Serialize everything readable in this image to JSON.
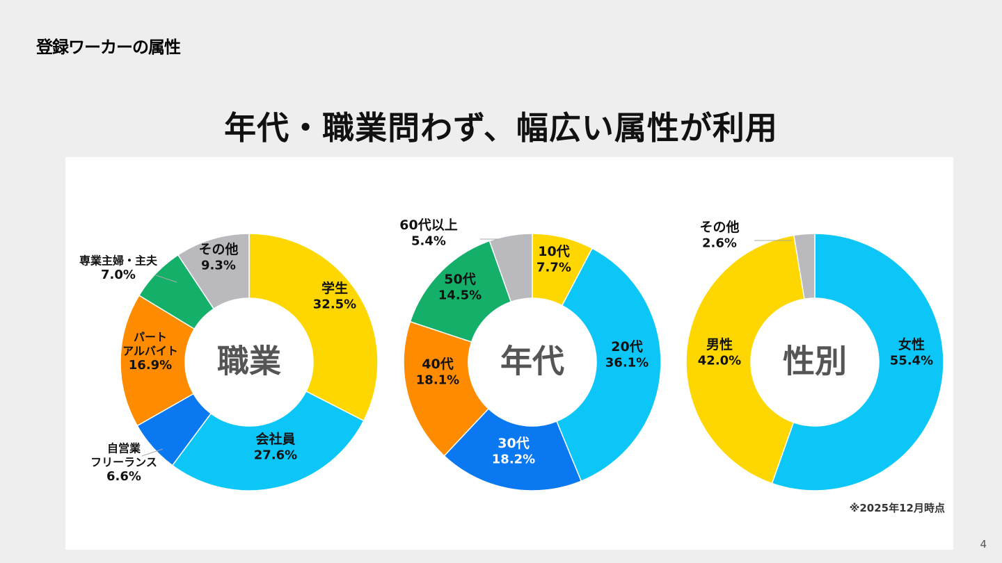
{
  "header": {
    "label": "登録ワーカーの属性"
  },
  "headline": "年代・職業問わず、幅広い属性が利用",
  "note": "※2025年12月時点",
  "page_number": "4",
  "chart_data": [
    {
      "type": "pie",
      "center_label": "職業",
      "categories": [
        "学生",
        "会社員",
        "自営業\nフリーランス",
        "パート\nアルバイト",
        "専業主婦・主夫",
        "その他"
      ],
      "values": [
        32.5,
        27.6,
        6.6,
        16.9,
        7.0,
        9.3
      ],
      "value_labels": [
        "32.5%",
        "27.6%",
        "6.6%",
        "16.9%",
        "7.0%",
        "9.3%"
      ],
      "colors": [
        "#FFD700",
        "#0CC6F8",
        "#0A78F0",
        "#FF8C00",
        "#14B06A",
        "#B9B9BE"
      ]
    },
    {
      "type": "pie",
      "center_label": "年代",
      "categories": [
        "10代",
        "20代",
        "30代",
        "40代",
        "50代",
        "60代以上"
      ],
      "values": [
        7.7,
        36.1,
        18.2,
        18.1,
        14.5,
        5.4
      ],
      "value_labels": [
        "7.7%",
        "36.1%",
        "18.2%",
        "18.1%",
        "14.5%",
        "5.4%"
      ],
      "colors": [
        "#FFD700",
        "#0CC6F8",
        "#0A78F0",
        "#FF8C00",
        "#14B06A",
        "#B9B9BE"
      ]
    },
    {
      "type": "pie",
      "center_label": "性別",
      "categories": [
        "女性",
        "男性",
        "その他"
      ],
      "values": [
        55.4,
        42.0,
        2.6
      ],
      "value_labels": [
        "55.4%",
        "42.0%",
        "2.6%"
      ],
      "colors": [
        "#0CC6F8",
        "#FFD700",
        "#B9B9BE"
      ]
    }
  ]
}
